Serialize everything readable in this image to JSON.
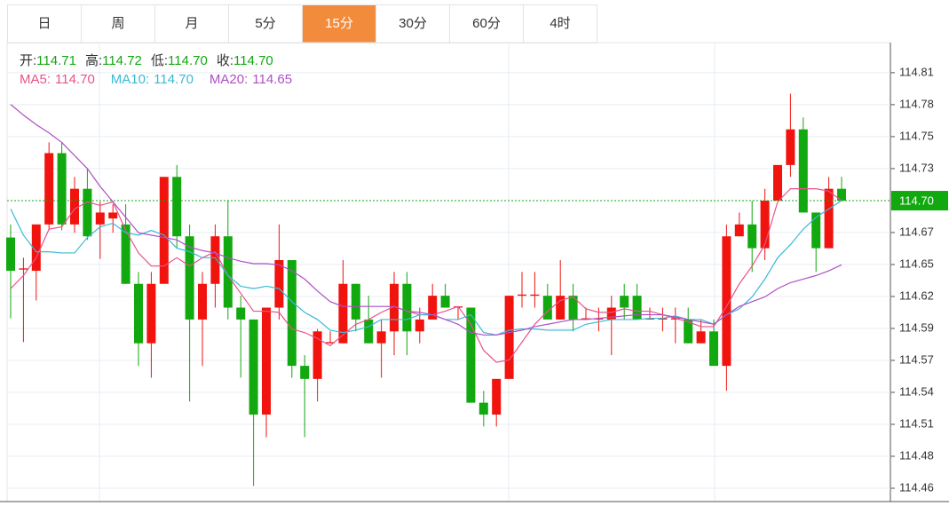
{
  "tabs": {
    "items": [
      "日",
      "周",
      "月",
      "5分",
      "15分",
      "30分",
      "60分",
      "4时"
    ],
    "active": 4
  },
  "chart_data": {
    "type": "candlestick",
    "ohlc_legend": [
      {
        "label": "开:",
        "value": "114.71"
      },
      {
        "label": "高:",
        "value": "114.72"
      },
      {
        "label": "低:",
        "value": "114.70"
      },
      {
        "label": "收:",
        "value": "114.70"
      }
    ],
    "up_color": "#f0130e",
    "down_color": "#12a80f",
    "ylim": [
      114.4468,
      114.833
    ],
    "yticks": [
      {
        "value": 114.458,
        "label": "114.46"
      },
      {
        "value": 114.4849,
        "label": "114.48"
      },
      {
        "value": 114.5118,
        "label": "114.51"
      },
      {
        "value": 114.5387,
        "label": "114.54"
      },
      {
        "value": 114.5656,
        "label": "114.57"
      },
      {
        "value": 114.5925,
        "label": "114.59"
      },
      {
        "value": 114.6194,
        "label": "114.62"
      },
      {
        "value": 114.6463,
        "label": "114.65"
      },
      {
        "value": 114.6732,
        "label": "114.67"
      },
      {
        "value": 114.727,
        "label": "114.73"
      },
      {
        "value": 114.7539,
        "label": "114.75"
      },
      {
        "value": 114.7808,
        "label": "114.78"
      },
      {
        "value": 114.8077,
        "label": "114.81"
      }
    ],
    "grid": true,
    "current_price": {
      "value": 114.7,
      "label": "114.70",
      "color": "#12a80f"
    },
    "open": [
      114.669,
      114.642,
      114.641,
      114.68,
      114.74,
      114.68,
      114.71,
      114.68,
      114.685,
      114.68,
      114.63,
      114.58,
      114.63,
      114.72,
      114.67,
      114.6,
      114.63,
      114.67,
      114.61,
      114.6,
      114.52,
      114.61,
      114.65,
      114.561,
      114.55,
      114.58,
      114.58,
      114.63,
      114.6,
      114.58,
      114.59,
      114.63,
      114.59,
      114.6,
      114.62,
      114.61,
      114.61,
      114.53,
      114.52,
      114.55,
      114.62,
      114.62,
      114.62,
      114.6,
      114.62,
      114.6,
      114.6,
      114.6,
      114.62,
      114.62,
      114.6,
      114.6,
      114.6,
      114.6,
      114.58,
      114.59,
      114.561,
      114.67,
      114.68,
      114.66,
      114.7,
      114.73,
      114.76,
      114.69,
      114.66,
      114.71
    ],
    "high": [
      114.68,
      114.652,
      114.68,
      114.749,
      114.749,
      114.72,
      114.727,
      114.699,
      114.697,
      114.697,
      114.64,
      114.64,
      114.72,
      114.73,
      114.68,
      114.64,
      114.68,
      114.7,
      114.62,
      114.6,
      114.61,
      114.68,
      114.65,
      114.57,
      114.592,
      114.59,
      114.65,
      114.63,
      114.62,
      114.6,
      114.64,
      114.64,
      114.61,
      114.63,
      114.63,
      114.61,
      114.61,
      114.54,
      114.55,
      114.62,
      114.64,
      114.64,
      114.63,
      114.65,
      114.63,
      114.61,
      114.61,
      114.62,
      114.63,
      114.63,
      114.61,
      114.61,
      114.61,
      114.61,
      114.6,
      114.6,
      114.68,
      114.69,
      114.7,
      114.71,
      114.73,
      114.79,
      114.77,
      114.69,
      114.72,
      114.72
    ],
    "low": [
      114.601,
      114.581,
      114.616,
      114.675,
      114.675,
      114.673,
      114.667,
      114.651,
      114.673,
      114.63,
      114.561,
      114.551,
      114.63,
      114.66,
      114.531,
      114.561,
      114.61,
      114.6,
      114.551,
      114.46,
      114.501,
      114.6,
      114.551,
      114.501,
      114.531,
      114.58,
      114.58,
      114.59,
      114.58,
      114.551,
      114.57,
      114.57,
      114.58,
      114.6,
      114.61,
      114.6,
      114.53,
      114.51,
      114.51,
      114.55,
      114.61,
      114.61,
      114.6,
      114.6,
      114.59,
      114.6,
      114.59,
      114.57,
      114.6,
      114.6,
      114.6,
      114.59,
      114.58,
      114.58,
      114.58,
      114.561,
      114.54,
      114.67,
      114.64,
      114.65,
      114.7,
      114.72,
      114.69,
      114.64,
      114.66,
      114.7
    ],
    "close": [
      114.641,
      114.643,
      114.68,
      114.74,
      114.68,
      114.71,
      114.67,
      114.69,
      114.69,
      114.63,
      114.58,
      114.63,
      114.72,
      114.67,
      114.6,
      114.63,
      114.67,
      114.61,
      114.6,
      114.52,
      114.61,
      114.65,
      114.561,
      114.55,
      114.59,
      114.581,
      114.63,
      114.6,
      114.58,
      114.59,
      114.63,
      114.59,
      114.6,
      114.62,
      114.61,
      114.611,
      114.53,
      114.52,
      114.55,
      114.62,
      114.621,
      114.621,
      114.6,
      114.62,
      114.6,
      114.601,
      114.601,
      114.61,
      114.61,
      114.6,
      114.601,
      114.601,
      114.601,
      114.58,
      114.59,
      114.561,
      114.67,
      114.68,
      114.66,
      114.7,
      114.73,
      114.76,
      114.69,
      114.66,
      114.71,
      114.7
    ],
    "series": [
      {
        "name": "MA5:",
        "value_label": "114.70",
        "color": "#e8538a",
        "values": [
          114.626,
          114.637,
          114.652,
          114.676,
          114.678,
          114.693,
          114.699,
          114.696,
          114.699,
          114.675,
          114.656,
          114.645,
          114.645,
          114.652,
          114.645,
          114.652,
          114.657,
          114.637,
          114.622,
          114.607,
          114.607,
          114.606,
          114.592,
          114.589,
          114.584,
          114.578,
          114.587,
          114.596,
          114.6,
          114.606,
          114.611,
          114.607,
          114.604,
          114.604,
          114.607,
          114.611,
          114.596,
          114.574,
          114.564,
          114.566,
          114.581,
          114.596,
          114.607,
          114.616,
          114.619,
          114.609,
          114.606,
          114.606,
          114.609,
          114.607,
          114.607,
          114.604,
          114.601,
          114.598,
          114.594,
          114.594,
          114.611,
          114.63,
          114.645,
          114.663,
          114.699,
          114.71,
          114.71,
          114.71,
          114.708,
          114.7
        ]
      },
      {
        "name": "MA10:",
        "value_label": "114.70",
        "color": "#3ab9d6",
        "values": [
          114.693,
          114.671,
          114.657,
          114.657,
          114.656,
          114.656,
          114.669,
          114.678,
          114.681,
          114.673,
          114.671,
          114.675,
          114.671,
          114.66,
          114.657,
          114.652,
          114.652,
          114.637,
          114.628,
          114.626,
          114.628,
          114.626,
          114.615,
          114.606,
          114.6,
          114.591,
          114.589,
          114.591,
          114.594,
          114.6,
          114.6,
          114.6,
          114.604,
          114.604,
          114.6,
          114.6,
          114.604,
          114.589,
          114.587,
          114.591,
          114.592,
          114.592,
          114.591,
          114.591,
          114.591,
          114.596,
          114.598,
          114.6,
          114.6,
          114.6,
          114.601,
          114.601,
          114.603,
          114.6,
          114.6,
          114.596,
          114.604,
          114.609,
          114.619,
          114.634,
          114.652,
          114.663,
          114.676,
          114.686,
          114.693,
          114.7
        ]
      },
      {
        "name": "MA20:",
        "value_label": "114.65",
        "color": "#b04fc6",
        "values": [
          114.781,
          114.772,
          114.764,
          114.757,
          114.749,
          114.738,
          114.727,
          114.712,
          114.699,
          114.686,
          114.673,
          114.671,
          114.669,
          114.667,
          114.661,
          114.658,
          114.656,
          114.652,
          114.649,
          114.647,
          114.647,
          114.646,
          114.641,
          114.634,
          114.624,
          114.615,
          114.611,
          114.611,
          114.611,
          114.611,
          114.611,
          114.607,
          114.606,
          114.604,
          114.6,
          114.596,
          114.589,
          114.587,
          114.587,
          114.589,
          114.591,
          114.594,
          114.596,
          114.598,
          114.6,
          114.6,
          114.601,
          114.602,
          114.603,
          114.604,
          114.604,
          114.604,
          114.602,
          114.6,
          114.598,
          114.596,
          114.604,
          114.611,
          114.615,
          114.619,
          114.626,
          114.631,
          114.634,
          114.637,
          114.641,
          114.646
        ]
      }
    ]
  }
}
